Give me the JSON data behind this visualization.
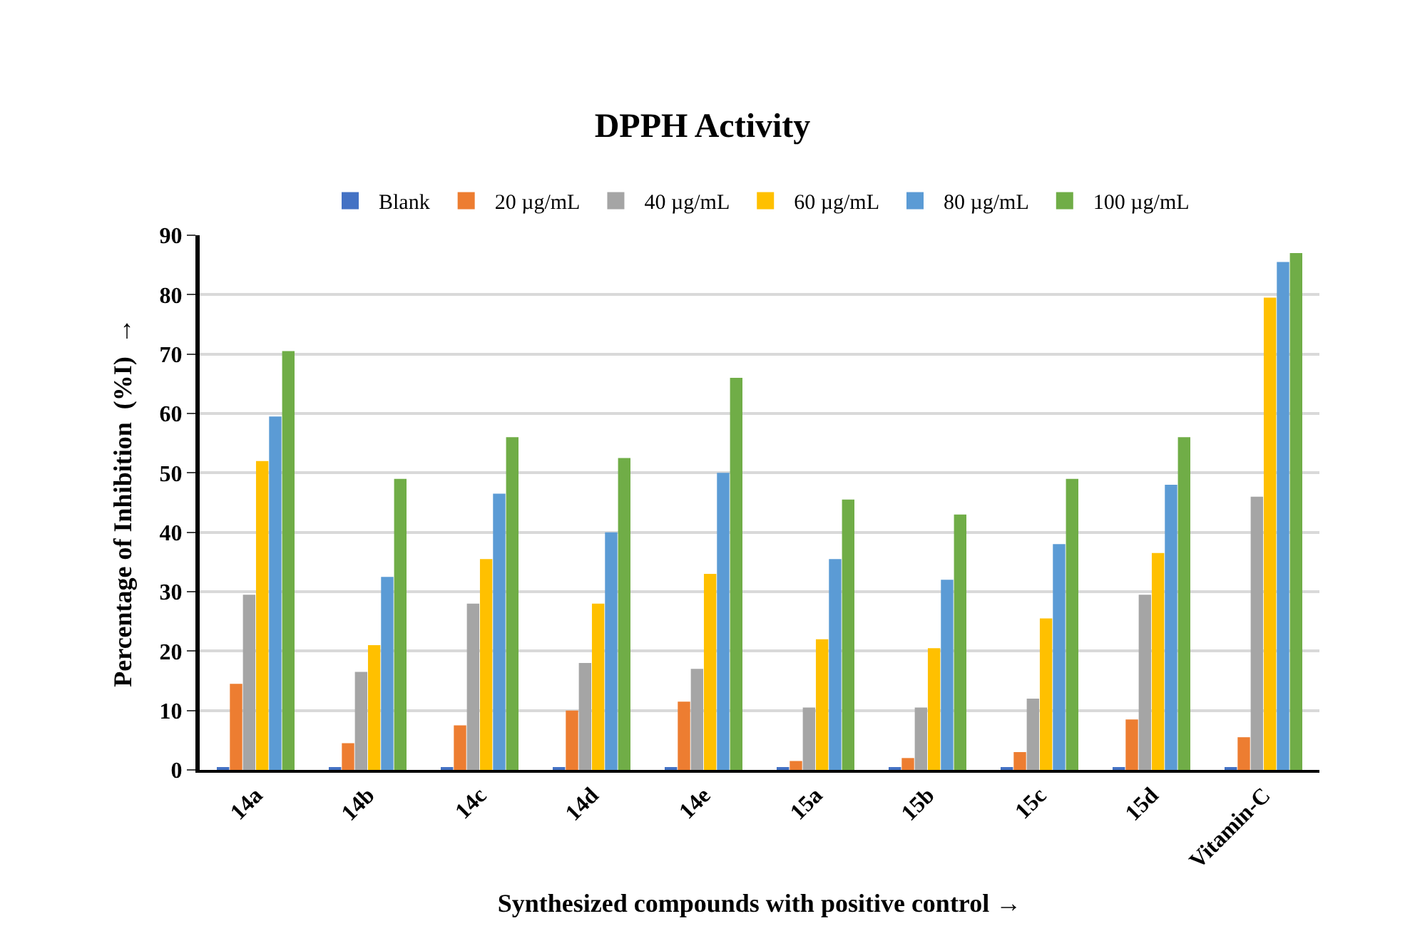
{
  "chart_data": {
    "type": "bar",
    "title": "DPPH Activity",
    "xlabel": "Synthesized compounds with positive control →",
    "ylabel": "Percentage of Inhibition  (%I)  →",
    "categories": [
      "14a",
      "14b",
      "14c",
      "14d",
      "14e",
      "15a",
      "15b",
      "15c",
      "15d",
      "Vitamin-C"
    ],
    "series": [
      {
        "name": "Blank",
        "color": "#4472c4",
        "values": [
          0.3,
          0.3,
          0.3,
          0.3,
          0.3,
          0.3,
          0.3,
          0.3,
          0.3,
          0.3
        ]
      },
      {
        "name": "20 µg/mL",
        "color": "#ed7d31",
        "values": [
          14.5,
          4.5,
          7.5,
          10,
          11.5,
          1.5,
          2,
          3,
          8.5,
          5.5
        ]
      },
      {
        "name": "40 µg/mL",
        "color": "#a5a5a5",
        "values": [
          29.5,
          16.5,
          28,
          18,
          17,
          10.5,
          10.5,
          12,
          29.5,
          46
        ]
      },
      {
        "name": "60 µg/mL",
        "color": "#ffc000",
        "values": [
          52,
          21,
          35.5,
          28,
          33,
          22,
          20.5,
          25.5,
          36.5,
          79.5
        ]
      },
      {
        "name": "80 µg/mL",
        "color": "#5b9bd5",
        "values": [
          59.5,
          32.5,
          46.5,
          40,
          50,
          35.5,
          32,
          38,
          48,
          85.5
        ]
      },
      {
        "name": "100 µg/mL",
        "color": "#70ad47",
        "values": [
          70.5,
          49,
          56,
          52.5,
          66,
          45.5,
          43,
          49,
          56,
          87
        ]
      }
    ],
    "ylim": [
      0,
      90
    ],
    "yticks": [
      0,
      10,
      20,
      30,
      40,
      50,
      60,
      70,
      80,
      90
    ],
    "grid": "y",
    "legend": "top"
  }
}
